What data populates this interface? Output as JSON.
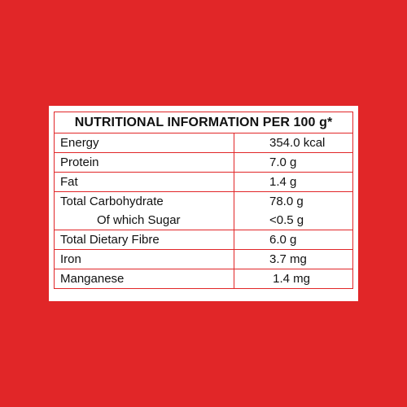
{
  "title": "NUTRITIONAL INFORMATION PER 100 g*",
  "rows": [
    {
      "name": "Energy",
      "value": "354.0 kcal"
    },
    {
      "name": "Protein",
      "value": "7.0 g"
    },
    {
      "name": "Fat",
      "value": "1.4 g"
    },
    {
      "name": "Total Carbohydrate",
      "value": "78.0 g",
      "sub_name": "Of which Sugar",
      "sub_value": "<0.5 g"
    },
    {
      "name": "Total Dietary Fibre",
      "value": "6.0 g"
    },
    {
      "name": "Iron",
      "value": "3.7 mg"
    },
    {
      "name": "Manganese",
      "value": " 1.4 mg"
    }
  ],
  "colors": {
    "background": "#e12628",
    "panel": "#ffffff",
    "border": "#e12628",
    "text": "#111111"
  }
}
